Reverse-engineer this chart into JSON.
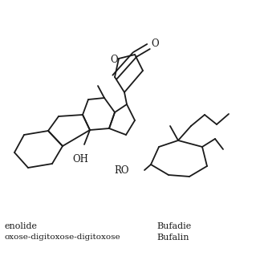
{
  "background_color": "#ffffff",
  "line_color": "#1a1a1a",
  "line_width": 1.3,
  "text_color": "#1a1a1a",
  "label1_line1": "enolide",
  "label1_line2": "oxose-digitoxose-digitoxose",
  "label2_line1": "Bufadie",
  "label2_line2": "Bufalin",
  "figsize": [
    3.19,
    3.19
  ],
  "dpi": 100
}
